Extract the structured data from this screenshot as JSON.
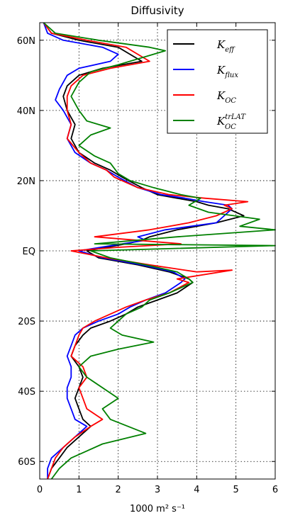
{
  "chart_data": {
    "type": "line",
    "title": "Diffusivity",
    "xlabel": "1000 m² s⁻¹",
    "ylabel": "",
    "xlim": [
      0,
      6
    ],
    "ylim": [
      -65,
      65
    ],
    "grid": true,
    "legend_position": "top-right",
    "xticks": [
      0,
      1,
      2,
      3,
      4,
      5,
      6
    ],
    "yticks": [
      {
        "value": 60,
        "label": "60N"
      },
      {
        "value": 40,
        "label": "40N"
      },
      {
        "value": 20,
        "label": "20N"
      },
      {
        "value": 0,
        "label": "EQ"
      },
      {
        "value": -20,
        "label": "20S"
      },
      {
        "value": -40,
        "label": "40S"
      },
      {
        "value": -60,
        "label": "60S"
      }
    ],
    "legend": [
      {
        "base": "K",
        "sub": "eff",
        "sup": ""
      },
      {
        "base": "K",
        "sub": "flux",
        "sup": ""
      },
      {
        "base": "K",
        "sub": "OC",
        "sup": ""
      },
      {
        "base": "K",
        "sub": "OC",
        "sup": "trLAT"
      }
    ],
    "series": [
      {
        "name": "K_eff",
        "color": "#000000",
        "points": [
          [
            0.1,
            65
          ],
          [
            0.3,
            62
          ],
          [
            1.0,
            60
          ],
          [
            2.0,
            58
          ],
          [
            2.3,
            56
          ],
          [
            2.6,
            54
          ],
          [
            1.6,
            52
          ],
          [
            1.0,
            50
          ],
          [
            0.7,
            47
          ],
          [
            0.6,
            44
          ],
          [
            0.7,
            40
          ],
          [
            0.9,
            36
          ],
          [
            0.8,
            32
          ],
          [
            1.0,
            28
          ],
          [
            1.4,
            25
          ],
          [
            1.8,
            23
          ],
          [
            2.1,
            21
          ],
          [
            2.6,
            18
          ],
          [
            3.0,
            16
          ],
          [
            3.5,
            15
          ],
          [
            4.0,
            14
          ],
          [
            4.3,
            13
          ],
          [
            4.8,
            12
          ],
          [
            5.2,
            10
          ],
          [
            4.5,
            8
          ],
          [
            3.5,
            6
          ],
          [
            2.8,
            4
          ],
          [
            2.6,
            3
          ],
          [
            2.2,
            2
          ],
          [
            1.2,
            0
          ],
          [
            1.5,
            -2
          ],
          [
            2.5,
            -4
          ],
          [
            3.3,
            -6
          ],
          [
            3.8,
            -8
          ],
          [
            3.9,
            -9
          ],
          [
            3.5,
            -12
          ],
          [
            3.0,
            -14
          ],
          [
            2.5,
            -16
          ],
          [
            2.2,
            -18
          ],
          [
            1.8,
            -20
          ],
          [
            1.3,
            -22
          ],
          [
            1.1,
            -24
          ],
          [
            0.9,
            -27
          ],
          [
            0.8,
            -30
          ],
          [
            1.0,
            -33
          ],
          [
            1.1,
            -36
          ],
          [
            1.0,
            -39
          ],
          [
            0.9,
            -42
          ],
          [
            1.0,
            -45
          ],
          [
            1.1,
            -48
          ],
          [
            1.3,
            -50
          ],
          [
            1.0,
            -53
          ],
          [
            0.7,
            -56
          ],
          [
            0.5,
            -59
          ],
          [
            0.3,
            -62
          ],
          [
            0.2,
            -65
          ]
        ]
      },
      {
        "name": "K_flux",
        "color": "#0000ff",
        "points": [
          [
            0.1,
            65
          ],
          [
            0.2,
            62
          ],
          [
            0.6,
            60
          ],
          [
            1.6,
            58
          ],
          [
            2.0,
            56
          ],
          [
            1.8,
            54
          ],
          [
            1.0,
            52
          ],
          [
            0.7,
            50
          ],
          [
            0.5,
            46
          ],
          [
            0.4,
            43
          ],
          [
            0.6,
            40
          ],
          [
            0.8,
            36
          ],
          [
            0.7,
            32
          ],
          [
            0.9,
            28
          ],
          [
            1.3,
            25
          ],
          [
            1.7,
            23
          ],
          [
            2.0,
            21
          ],
          [
            2.5,
            18
          ],
          [
            3.1,
            16
          ],
          [
            3.7,
            15
          ],
          [
            4.2,
            14
          ],
          [
            4.8,
            13
          ],
          [
            4.9,
            12
          ],
          [
            4.7,
            10
          ],
          [
            4.5,
            8
          ],
          [
            3.2,
            6
          ],
          [
            2.5,
            4
          ],
          [
            2.7,
            3
          ],
          [
            2.1,
            2
          ],
          [
            1.0,
            0
          ],
          [
            1.6,
            -2
          ],
          [
            2.6,
            -4
          ],
          [
            3.4,
            -6
          ],
          [
            3.7,
            -8
          ],
          [
            3.6,
            -9
          ],
          [
            3.2,
            -12
          ],
          [
            2.7,
            -14
          ],
          [
            2.3,
            -16
          ],
          [
            2.0,
            -18
          ],
          [
            1.5,
            -20
          ],
          [
            1.1,
            -22
          ],
          [
            0.9,
            -24
          ],
          [
            0.8,
            -27
          ],
          [
            0.7,
            -30
          ],
          [
            0.8,
            -33
          ],
          [
            0.8,
            -36
          ],
          [
            0.7,
            -39
          ],
          [
            0.7,
            -42
          ],
          [
            0.8,
            -45
          ],
          [
            0.9,
            -48
          ],
          [
            1.2,
            -50
          ],
          [
            0.9,
            -53
          ],
          [
            0.6,
            -56
          ],
          [
            0.3,
            -59
          ],
          [
            0.2,
            -62
          ],
          [
            0.2,
            -65
          ]
        ]
      },
      {
        "name": "K_OC",
        "color": "#ff0000",
        "points": [
          [
            0.1,
            65
          ],
          [
            0.3,
            62
          ],
          [
            1.2,
            60
          ],
          [
            2.2,
            58
          ],
          [
            2.5,
            56
          ],
          [
            2.8,
            54
          ],
          [
            1.8,
            52
          ],
          [
            1.1,
            50
          ],
          [
            0.8,
            47
          ],
          [
            0.7,
            44
          ],
          [
            0.7,
            40
          ],
          [
            0.8,
            36
          ],
          [
            0.7,
            32
          ],
          [
            1.0,
            28
          ],
          [
            1.3,
            25
          ],
          [
            1.7,
            23
          ],
          [
            1.9,
            21
          ],
          [
            2.5,
            18
          ],
          [
            3.3,
            16
          ],
          [
            4.2,
            15
          ],
          [
            5.3,
            14
          ],
          [
            4.7,
            13
          ],
          [
            4.9,
            12
          ],
          [
            4.5,
            10
          ],
          [
            3.8,
            8
          ],
          [
            2.8,
            6
          ],
          [
            1.4,
            4
          ],
          [
            3.6,
            2
          ],
          [
            2.0,
            1
          ],
          [
            0.8,
            0
          ],
          [
            1.7,
            -2
          ],
          [
            2.8,
            -4
          ],
          [
            4.0,
            -6
          ],
          [
            4.9,
            -5.5
          ],
          [
            3.5,
            -8
          ],
          [
            3.8,
            -9
          ],
          [
            3.3,
            -12
          ],
          [
            2.7,
            -14
          ],
          [
            2.2,
            -16
          ],
          [
            1.8,
            -18
          ],
          [
            1.4,
            -20
          ],
          [
            1.1,
            -22
          ],
          [
            1.0,
            -24
          ],
          [
            0.9,
            -27
          ],
          [
            0.8,
            -30
          ],
          [
            1.1,
            -33
          ],
          [
            1.2,
            -36
          ],
          [
            1.0,
            -39
          ],
          [
            1.1,
            -42
          ],
          [
            1.2,
            -45
          ],
          [
            1.6,
            -48
          ],
          [
            1.3,
            -50
          ],
          [
            0.9,
            -53
          ],
          [
            0.6,
            -56
          ],
          [
            0.4,
            -59
          ],
          [
            0.3,
            -62
          ],
          [
            0.2,
            -65
          ]
        ]
      },
      {
        "name": "K_OC^trLAT",
        "color": "#008000",
        "points": [
          [
            0.1,
            65
          ],
          [
            0.4,
            62
          ],
          [
            1.5,
            60
          ],
          [
            2.8,
            58
          ],
          [
            3.2,
            57
          ],
          [
            2.6,
            55
          ],
          [
            2.0,
            53
          ],
          [
            1.3,
            51
          ],
          [
            1.0,
            48
          ],
          [
            0.8,
            44
          ],
          [
            1.0,
            40
          ],
          [
            1.2,
            37
          ],
          [
            1.8,
            35
          ],
          [
            1.3,
            33
          ],
          [
            1.0,
            30
          ],
          [
            1.4,
            27
          ],
          [
            1.8,
            25
          ],
          [
            2.0,
            22
          ],
          [
            2.3,
            20
          ],
          [
            2.9,
            18
          ],
          [
            3.6,
            16
          ],
          [
            4.1,
            15
          ],
          [
            3.8,
            13
          ],
          [
            4.3,
            11
          ],
          [
            5.6,
            9
          ],
          [
            5.1,
            7
          ],
          [
            6.0,
            6
          ],
          [
            3.5,
            4
          ],
          [
            1.4,
            2
          ],
          [
            6.0,
            1.5
          ],
          [
            1.3,
            0
          ],
          [
            1.8,
            -2
          ],
          [
            2.7,
            -4
          ],
          [
            3.5,
            -6
          ],
          [
            3.8,
            -8
          ],
          [
            3.9,
            -9
          ],
          [
            3.3,
            -12
          ],
          [
            2.8,
            -14
          ],
          [
            2.6,
            -16
          ],
          [
            2.2,
            -18
          ],
          [
            2.0,
            -20
          ],
          [
            1.8,
            -22
          ],
          [
            2.1,
            -24
          ],
          [
            2.9,
            -26
          ],
          [
            2.0,
            -28
          ],
          [
            1.3,
            -30
          ],
          [
            1.0,
            -33
          ],
          [
            1.2,
            -36
          ],
          [
            2.0,
            -42
          ],
          [
            1.6,
            -45
          ],
          [
            1.8,
            -48
          ],
          [
            2.7,
            -52
          ],
          [
            1.6,
            -55
          ],
          [
            1.2,
            -57
          ],
          [
            0.8,
            -59
          ],
          [
            0.5,
            -62
          ],
          [
            0.3,
            -65
          ]
        ]
      }
    ]
  }
}
